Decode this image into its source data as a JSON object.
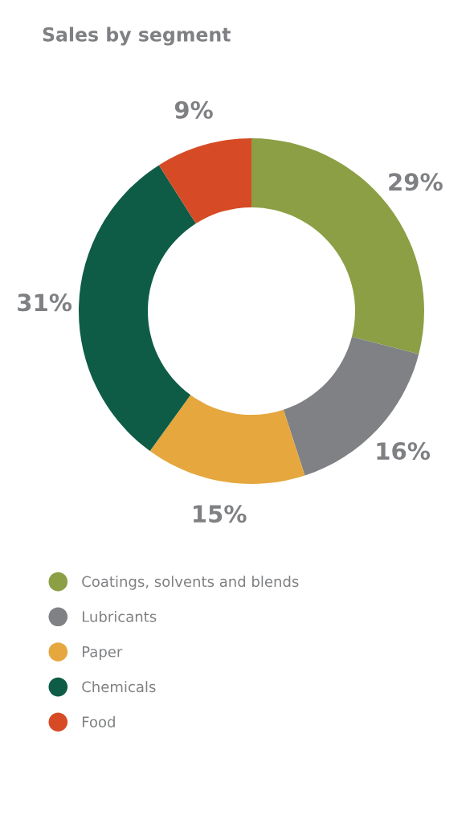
{
  "chart_data": {
    "type": "donut",
    "title": "Sales by segment",
    "categories": [
      "Coatings, solvents and blends",
      "Lubricants",
      "Paper",
      "Chemicals",
      "Food"
    ],
    "values": [
      29,
      16,
      15,
      31,
      9
    ],
    "value_labels": [
      "29%",
      "16%",
      "15%",
      "31%",
      "9%"
    ],
    "colors": [
      "#8c9f45",
      "#808184",
      "#e5a73e",
      "#0e5c45",
      "#d64b25"
    ],
    "legend": "bottom"
  }
}
